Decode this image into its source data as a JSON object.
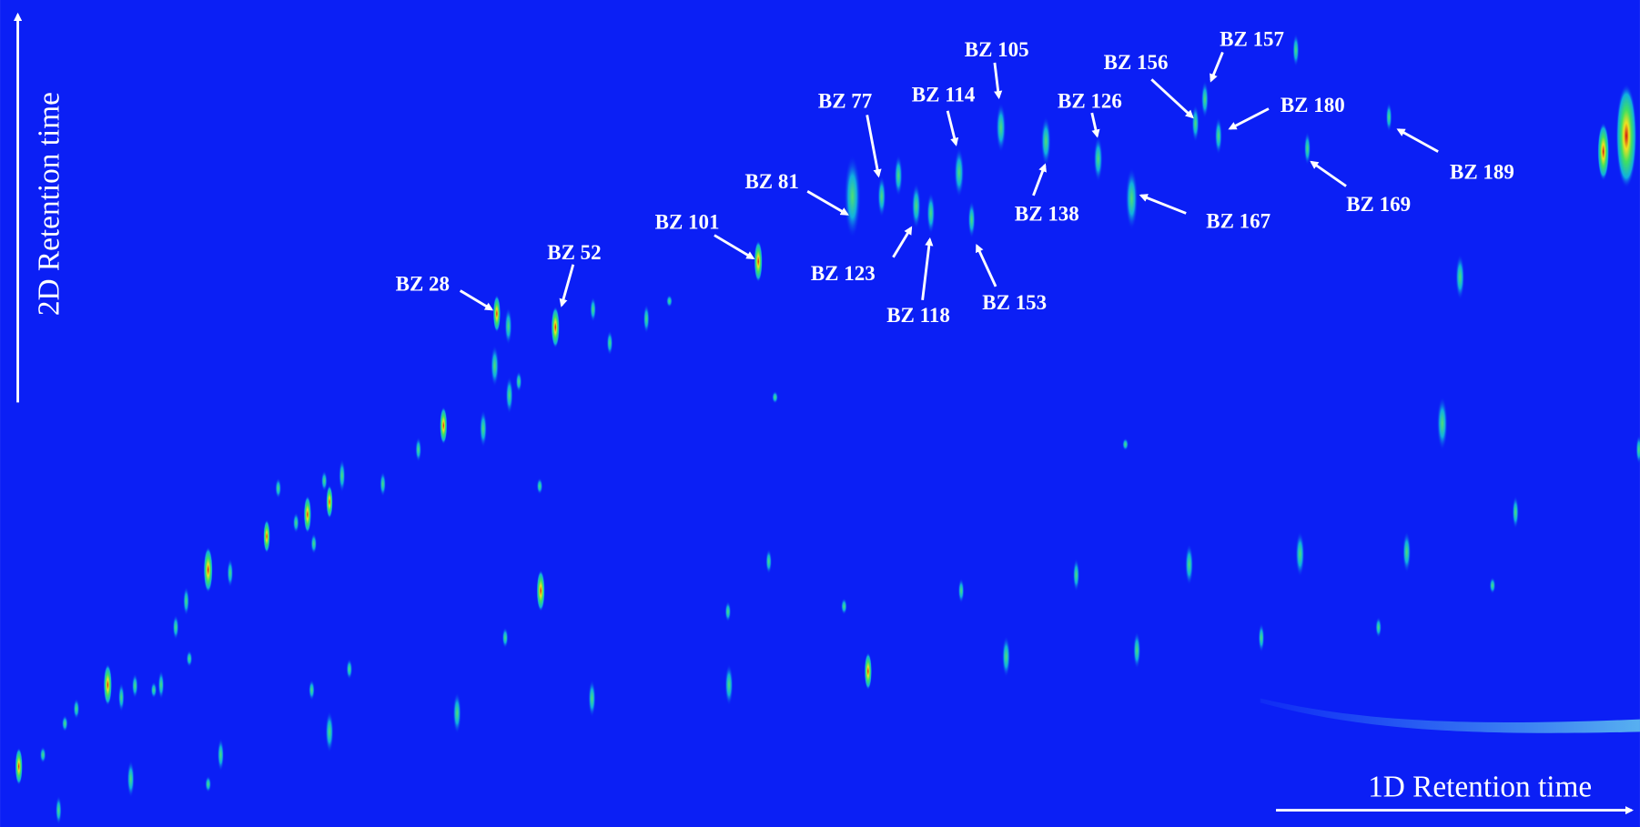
{
  "axes": {
    "x_label": "1D Retention time",
    "y_label": "2D Retention time"
  },
  "annotations": [
    {
      "label": "BZ 28"
    },
    {
      "label": "BZ 52"
    },
    {
      "label": "BZ 101"
    },
    {
      "label": "BZ 81"
    },
    {
      "label": "BZ 77"
    },
    {
      "label": "BZ 114"
    },
    {
      "label": "BZ 105"
    },
    {
      "label": "BZ 126"
    },
    {
      "label": "BZ 156"
    },
    {
      "label": "BZ 157"
    },
    {
      "label": "BZ 180"
    },
    {
      "label": "BZ 189"
    },
    {
      "label": "BZ 169"
    },
    {
      "label": "BZ 167"
    },
    {
      "label": "BZ 138"
    },
    {
      "label": "BZ 123"
    },
    {
      "label": "BZ 118"
    },
    {
      "label": "BZ 153"
    }
  ]
}
